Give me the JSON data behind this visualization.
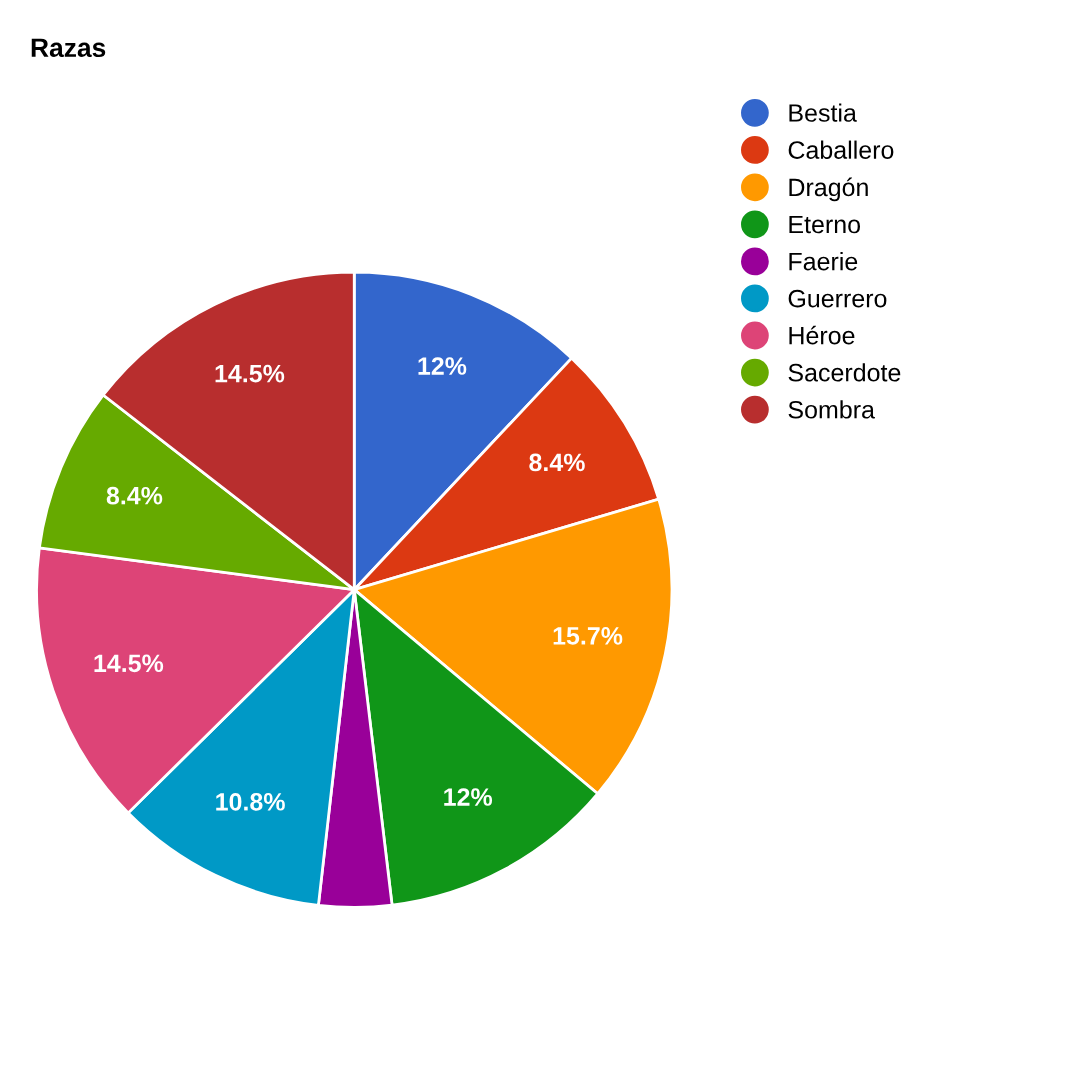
{
  "chart_data": {
    "type": "pie",
    "title": "Razas",
    "categories": [
      "Bestia",
      "Caballero",
      "Dragón",
      "Eterno",
      "Faerie",
      "Guerrero",
      "Héroe",
      "Sacerdote",
      "Sombra"
    ],
    "values": [
      12,
      8.4,
      15.7,
      12,
      3.7,
      10.8,
      14.5,
      8.4,
      14.5
    ],
    "colors": [
      "#3366cc",
      "#dc3912",
      "#ff9900",
      "#109618",
      "#990099",
      "#0099c6",
      "#dd4477",
      "#66aa00",
      "#b82e2e"
    ],
    "value_labels": [
      "12%",
      "8.4%",
      "15.7%",
      "12%",
      null,
      "10.8%",
      "14.5%",
      "8.4%",
      "14.5%"
    ],
    "legend": "right"
  }
}
